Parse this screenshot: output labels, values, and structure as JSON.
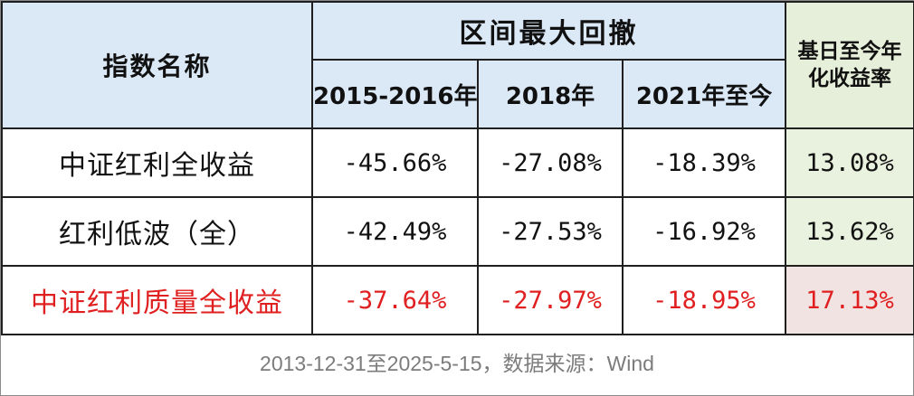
{
  "table": {
    "header": {
      "name_col": "指数名称",
      "drawdown_group": "区间最大回撤",
      "periods": [
        "2015-2016年",
        "2018年",
        "2021年至今"
      ],
      "annual_return": "基日至今年化收益率"
    },
    "rows": [
      {
        "name": "中证红利全收益",
        "dd_2015_2016": "-45.66%",
        "dd_2018": "-27.08%",
        "dd_2021_now": "-18.39%",
        "annual_return": "13.08%",
        "highlighted": false
      },
      {
        "name": "红利低波（全）",
        "dd_2015_2016": "-42.49%",
        "dd_2018": "-27.53%",
        "dd_2021_now": "-16.92%",
        "annual_return": "13.62%",
        "highlighted": false
      },
      {
        "name": "中证红利质量全收益",
        "dd_2015_2016": "-37.64%",
        "dd_2018": "-27.97%",
        "dd_2021_now": "-18.95%",
        "annual_return": "17.13%",
        "highlighted": true
      }
    ]
  },
  "footnote": "2013-12-31至2025-5-15，数据来源：Wind",
  "colors": {
    "header_blue": "#dbe8f6",
    "annual_green": "#e6efd9",
    "highlight_red": "#e02020",
    "footnote_gray": "#7c7c7c"
  }
}
